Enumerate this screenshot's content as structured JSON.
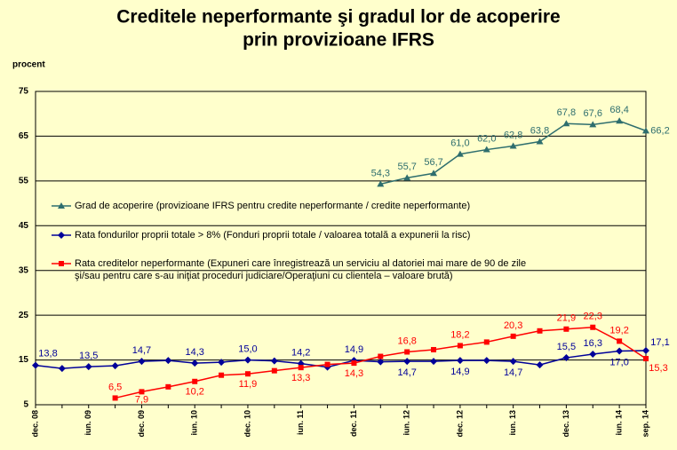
{
  "chart_data": {
    "type": "line",
    "title": [
      "Creditele neperformante şi gradul lor de acoperire",
      "prin provizioane IFRS"
    ],
    "y_label": "procent",
    "categories": [
      "dec. 08",
      null,
      "iun. 09",
      null,
      "dec. 09",
      null,
      "iun. 10",
      null,
      "dec. 10",
      null,
      "iun. 11",
      null,
      "dec. 11",
      null,
      "iun. 12",
      null,
      "dec. 12",
      null,
      "iun. 13",
      null,
      "dec. 13",
      null,
      "iun. 14",
      "sep. 14"
    ],
    "ylim": [
      5,
      75
    ],
    "yticks": [
      5,
      15,
      25,
      35,
      45,
      55,
      65,
      75
    ],
    "grid": true,
    "series": [
      {
        "name": "Grad de acoperire (provizioane IFRS pentru credite neperformante / credite neperformante)",
        "color": "#2e6e6e",
        "marker": "triangle",
        "values": [
          null,
          null,
          null,
          null,
          null,
          null,
          null,
          null,
          null,
          null,
          null,
          null,
          null,
          54.3,
          55.7,
          56.7,
          61.0,
          62.0,
          62.8,
          63.8,
          67.8,
          67.6,
          68.4,
          66.2
        ],
        "value_labels": [
          null,
          null,
          null,
          null,
          null,
          null,
          null,
          null,
          null,
          null,
          null,
          null,
          null,
          "54,3",
          "55,7",
          "56,7",
          "61,0",
          "62,0",
          "62,8",
          "63,8",
          "67,8",
          "67,6",
          "68,4",
          "66,2"
        ]
      },
      {
        "name": "Rata fondurilor proprii totale > 8% (Fonduri proprii totale / valoarea totală a expunerii la risc)",
        "color": "#000099",
        "marker": "diamond",
        "values": [
          13.8,
          13.1,
          13.5,
          13.7,
          14.7,
          14.9,
          14.3,
          14.5,
          15.0,
          14.8,
          14.2,
          13.4,
          14.9,
          14.6,
          14.7,
          14.7,
          14.9,
          14.9,
          14.7,
          13.9,
          15.5,
          16.3,
          17.0,
          17.1
        ],
        "value_labels": [
          "13,8",
          null,
          "13,5",
          null,
          "14,7",
          null,
          "14,3",
          null,
          "15,0",
          null,
          "14,2",
          null,
          "14,9",
          null,
          "14,7",
          null,
          "14,9",
          null,
          "14,7",
          null,
          "15,5",
          "16,3",
          "17,0",
          "17,1"
        ]
      },
      {
        "name": "Rata creditelor neperformante (Expuneri care înregistrează un serviciu al datoriei mai mare de 90 de zile şi/sau pentru care s-au iniţiat proceduri judiciare/Operaţiuni cu clientela – valoare brută)",
        "color": "#ff0000",
        "marker": "square",
        "values": [
          null,
          null,
          null,
          6.5,
          7.9,
          9.0,
          10.2,
          11.6,
          11.9,
          12.6,
          13.3,
          14.0,
          14.3,
          15.8,
          16.8,
          17.3,
          18.2,
          19.0,
          20.3,
          21.5,
          21.9,
          22.3,
          19.2,
          15.3
        ],
        "value_labels": [
          null,
          null,
          null,
          "6,5",
          "7,9",
          null,
          "10,2",
          null,
          "11,9",
          null,
          "13,3",
          null,
          "14,3",
          null,
          "16,8",
          null,
          "18,2",
          null,
          "20,3",
          null,
          "21,9",
          "22,3",
          "19,2",
          "15,3"
        ]
      }
    ]
  }
}
